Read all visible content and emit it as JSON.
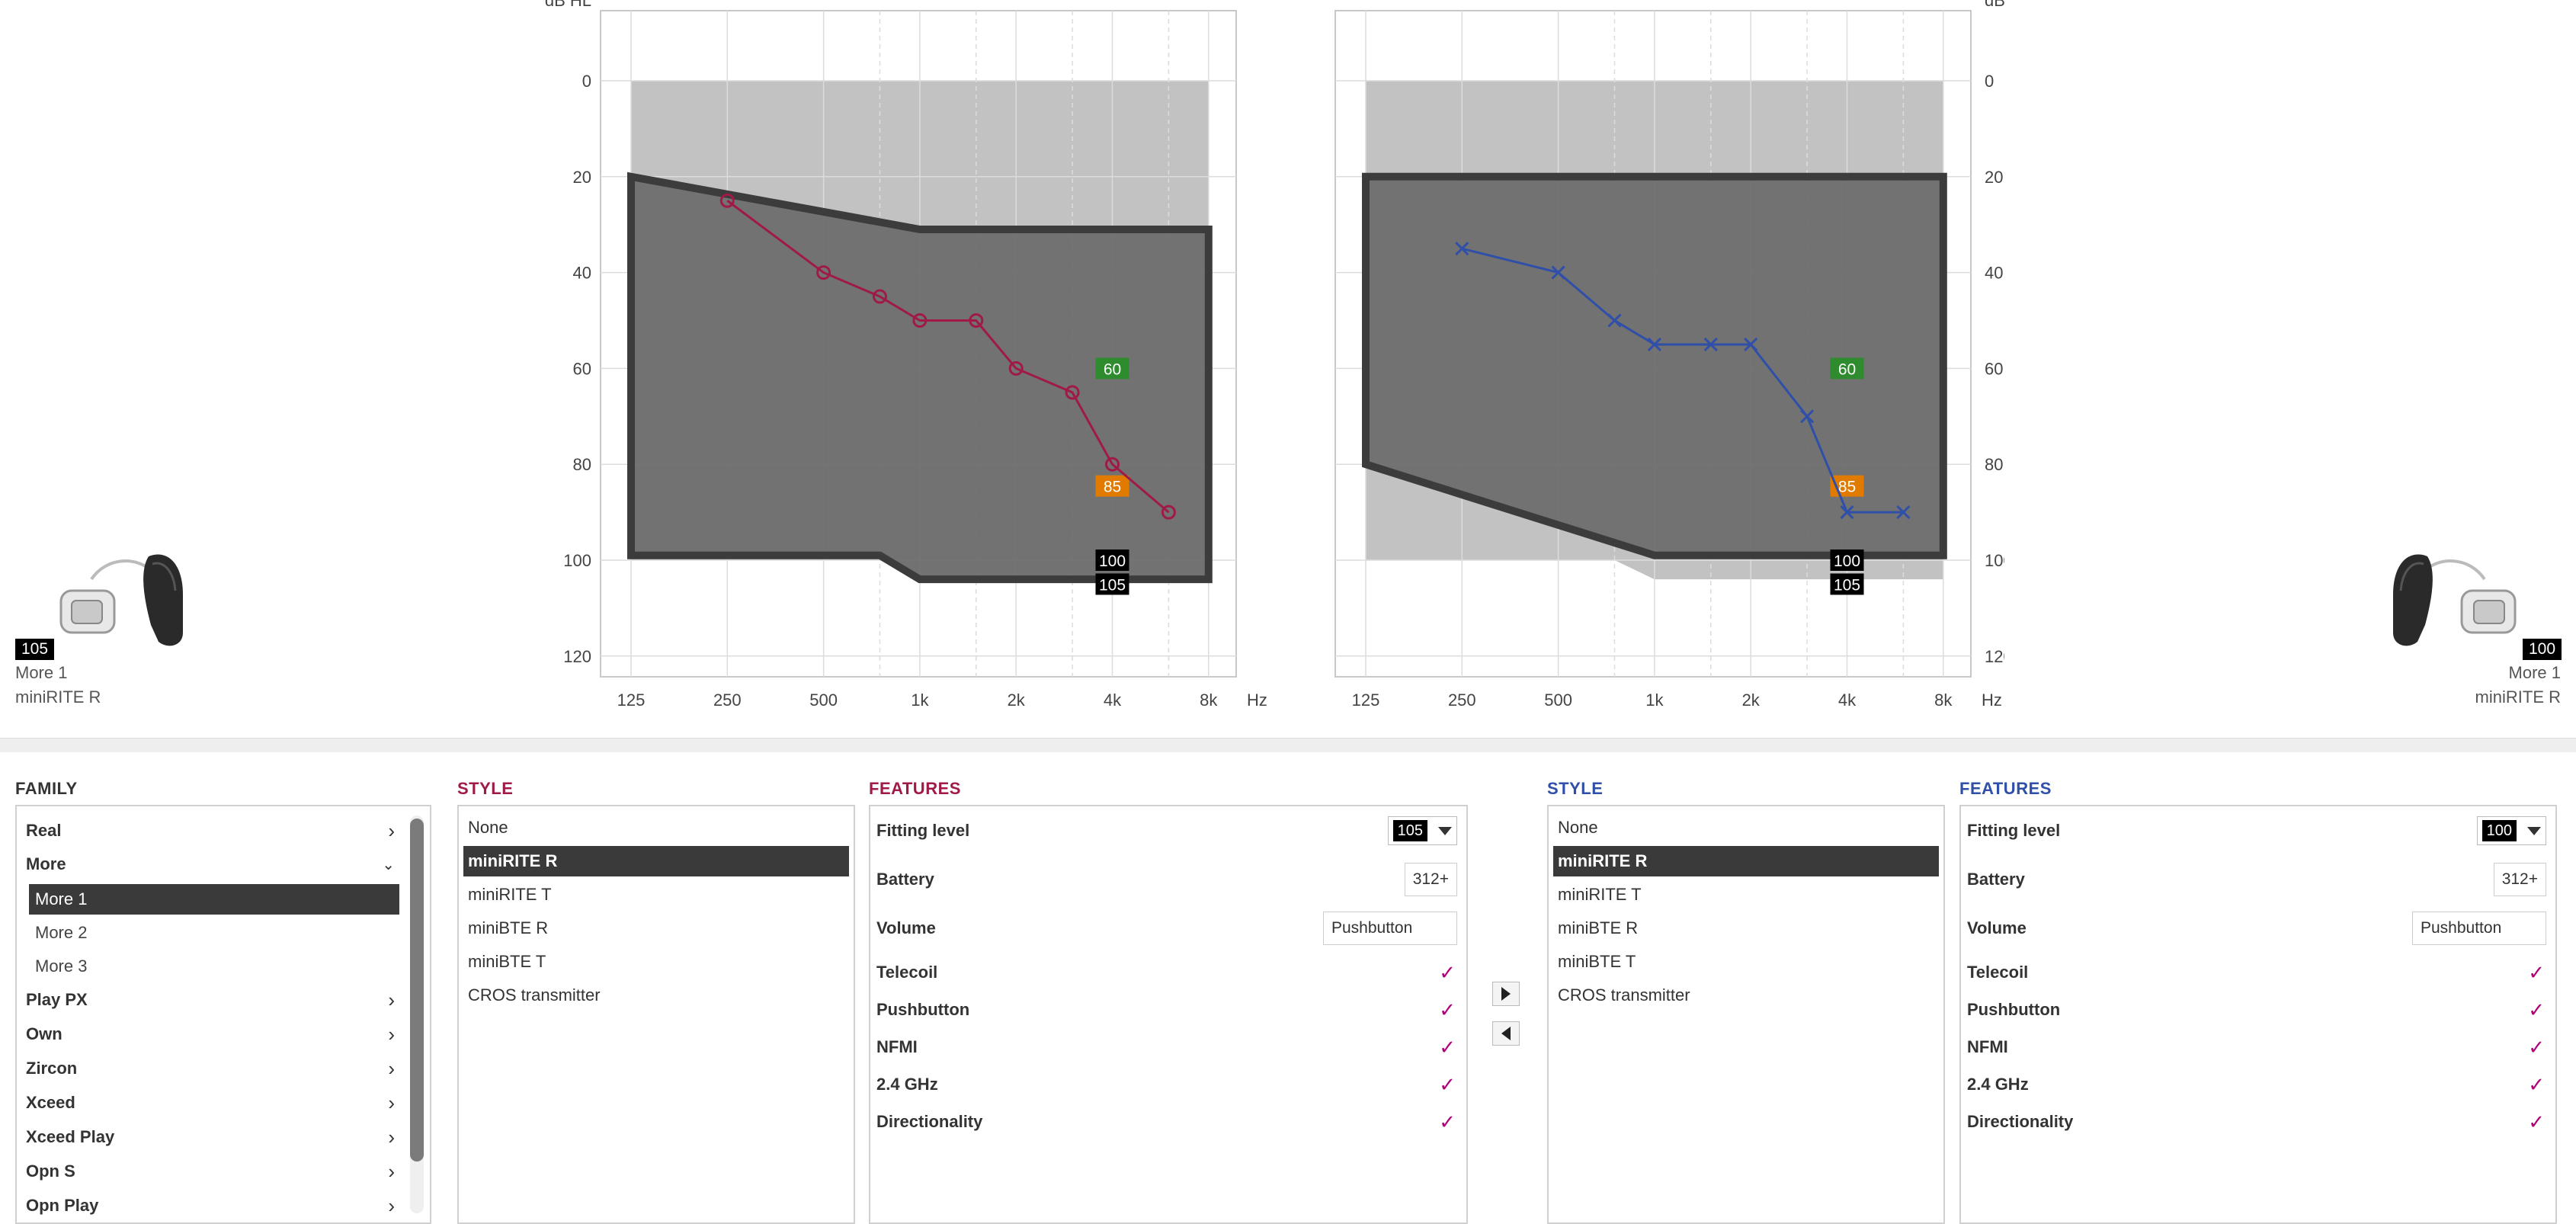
{
  "colors": {
    "left_ear": "#a01a48",
    "right_ear": "#2f4fa8",
    "check": "#b0007a",
    "badge_60": "#2e8b2e",
    "badge_85": "#e07b00"
  },
  "audiogram": {
    "y_unit": "dB HL",
    "x_unit": "Hz",
    "y_ticks": [
      "0",
      "20",
      "40",
      "60",
      "80",
      "100",
      "120"
    ],
    "x_ticks": [
      "125",
      "250",
      "500",
      "1k",
      "2k",
      "4k",
      "8k"
    ],
    "markers": [
      "60",
      "85",
      "100",
      "105"
    ]
  },
  "chart_data": [
    {
      "type": "line",
      "ear": "left",
      "x_scale": "log",
      "x": [
        250,
        500,
        750,
        1000,
        1500,
        2000,
        3000,
        4000,
        6000
      ],
      "y": [
        25,
        40,
        45,
        50,
        50,
        60,
        65,
        80,
        90
      ],
      "symbol": "circle",
      "ylim": [
        -15,
        125
      ],
      "fitting_range_upper": [
        [
          125,
          20
        ],
        [
          1000,
          31
        ],
        [
          8000,
          31
        ]
      ],
      "fitting_range_lower": [
        [
          125,
          99
        ],
        [
          750,
          99
        ],
        [
          1000,
          104
        ],
        [
          8000,
          104
        ]
      ]
    },
    {
      "type": "line",
      "ear": "right",
      "x_scale": "log",
      "x": [
        250,
        500,
        750,
        1000,
        1500,
        2000,
        3000,
        4000,
        6000
      ],
      "y": [
        35,
        40,
        50,
        55,
        55,
        55,
        70,
        90,
        90
      ],
      "symbol": "cross",
      "ylim": [
        -15,
        125
      ],
      "fitting_range_upper": [
        [
          125,
          20
        ],
        [
          8000,
          20
        ]
      ],
      "fitting_range_lower": [
        [
          125,
          80
        ],
        [
          1000,
          99
        ],
        [
          8000,
          99
        ]
      ]
    }
  ],
  "left_device": {
    "level": "105",
    "family": "More 1",
    "style": "miniRITE R"
  },
  "right_device": {
    "level": "100",
    "family": "More 1",
    "style": "miniRITE R"
  },
  "family": {
    "title": "FAMILY",
    "items": [
      {
        "label": "Real",
        "expanded": false
      },
      {
        "label": "More",
        "expanded": true,
        "children": [
          "More 1",
          "More 2",
          "More 3"
        ],
        "selected": "More 1"
      },
      {
        "label": "Play PX"
      },
      {
        "label": "Own"
      },
      {
        "label": "Zircon"
      },
      {
        "label": "Xceed"
      },
      {
        "label": "Xceed Play"
      },
      {
        "label": "Opn S"
      },
      {
        "label": "Opn Play"
      }
    ]
  },
  "style_left": {
    "title": "STYLE",
    "items": [
      "None",
      "miniRITE R",
      "miniRITE T",
      "miniBTE R",
      "miniBTE T",
      "CROS transmitter"
    ],
    "selected": "miniRITE R"
  },
  "style_right": {
    "title": "STYLE",
    "items": [
      "None",
      "miniRITE R",
      "miniRITE T",
      "miniBTE R",
      "miniBTE T",
      "CROS transmitter"
    ],
    "selected": "miniRITE R"
  },
  "features_left": {
    "title": "FEATURES",
    "fitting_level_label": "Fitting level",
    "fitting_level": "105",
    "battery_label": "Battery",
    "battery": "312+",
    "volume_label": "Volume",
    "volume": "Pushbutton",
    "checks": [
      "Telecoil",
      "Pushbutton",
      "NFMI",
      "2.4 GHz",
      "Directionality"
    ]
  },
  "features_right": {
    "title": "FEATURES",
    "fitting_level_label": "Fitting level",
    "fitting_level": "100",
    "battery_label": "Battery",
    "battery": "312+",
    "volume_label": "Volume",
    "volume": "Pushbutton",
    "checks": [
      "Telecoil",
      "Pushbutton",
      "NFMI",
      "2.4 GHz",
      "Directionality"
    ]
  }
}
